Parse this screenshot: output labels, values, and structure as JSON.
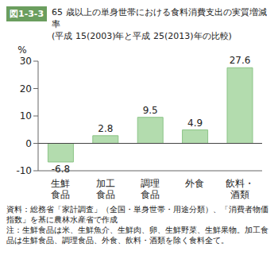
{
  "chart_data": {
    "type": "bar",
    "title": "図1-3-3",
    "subtitle": [
      "65 歳以上の単身世帯における食料消費支出の実質増減率",
      "(平成 15(2003)年と平成 25(2013)年の比較)"
    ],
    "y_label": "%",
    "categories": [
      "生鮮\n食品",
      "加工\n食品",
      "調理\n食品",
      "外食",
      "飲料・\n酒類"
    ],
    "values": [
      -6.8,
      2.8,
      9.5,
      4.9,
      27.6
    ],
    "color": "#b3dcae",
    "ylim": [
      -10,
      30
    ],
    "yticks": [
      -10,
      0,
      10,
      20,
      30
    ],
    "grid": false,
    "data_labels": true,
    "annotations": [
      "資料：総務省「家計調査」（全国・単身世帯・用途分類）、「消費者物価指数」を基に農林水産省で作成",
      "注：生鮮食品は米、生鮮魚介、生鮮肉、卵、生鮮野菜、生鮮果物。加工食品は生鮮食品、調理食品、外食、飲料・酒類を除く食料全て。"
    ]
  }
}
